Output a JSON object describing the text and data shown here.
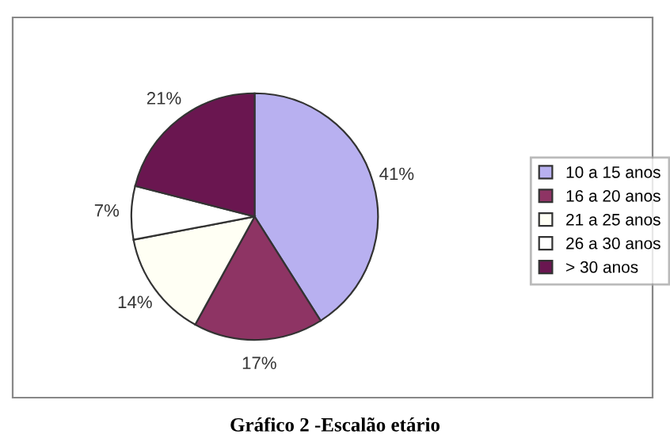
{
  "chart_data": {
    "type": "pie",
    "title": "Gráfico 2 -Escalão etário",
    "categories": [
      "10 a 15 anos",
      "16 a 20 anos",
      "21 a 25 anos",
      "26 a 30 anos",
      "> 30 anos"
    ],
    "values": [
      41,
      17,
      14,
      7,
      21
    ],
    "colors": [
      "#b8b0f0",
      "#8e3464",
      "#fffff4",
      "#ffffff",
      "#6a1650"
    ],
    "value_labels": [
      "41%",
      "17%",
      "14%",
      "7%",
      "21%"
    ],
    "legend": "right"
  }
}
